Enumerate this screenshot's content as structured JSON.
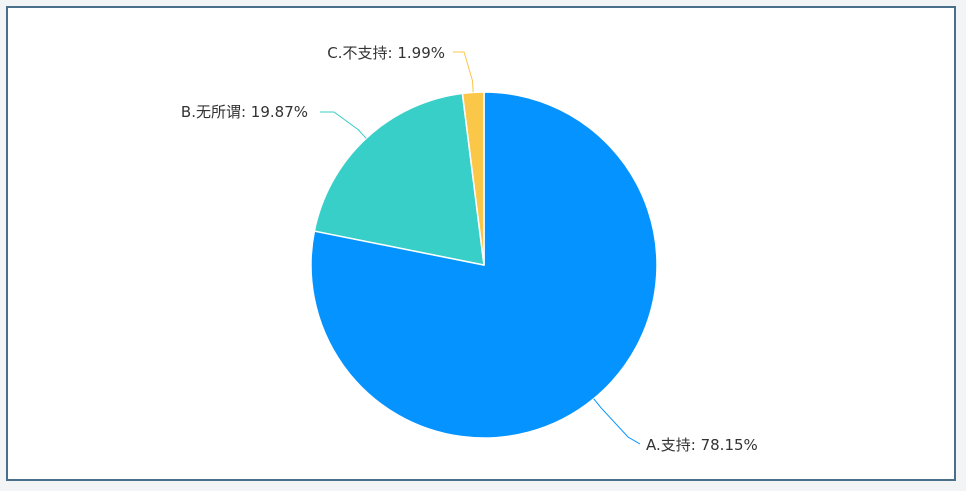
{
  "chart_data": {
    "type": "pie",
    "title": "",
    "start_angle_deg": 90,
    "direction": "clockwise",
    "legend": "none",
    "slices": [
      {
        "label": "A.支持: 78.15%",
        "name": "A.支持",
        "value": 78.15,
        "color": "#0593ff"
      },
      {
        "label": "B.无所谓: 19.87%",
        "name": "B.无所谓",
        "value": 19.87,
        "color": "#39cfc9"
      },
      {
        "label": "C.不支持: 1.99%",
        "name": "C.不支持",
        "value": 1.99,
        "color": "#fbc748"
      }
    ]
  }
}
